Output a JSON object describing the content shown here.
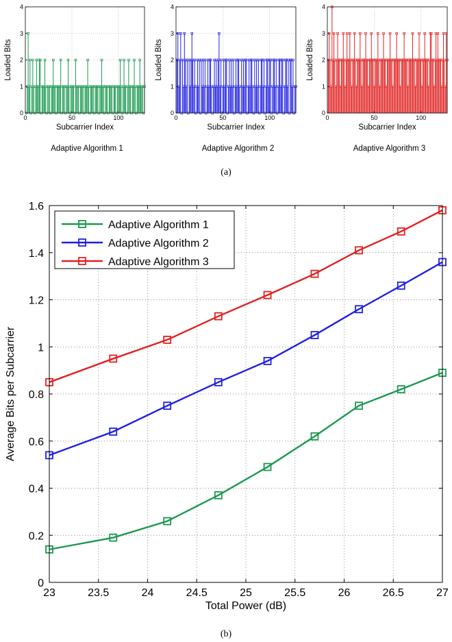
{
  "chart_data": [
    {
      "type": "stem",
      "title": "",
      "xlabel": "Subcarrier Index",
      "ylabel": "Loaded Bits",
      "caption": "Adaptive Algorithm 1",
      "color": "#1a9850",
      "xlim": [
        0,
        128
      ],
      "ylim": [
        0,
        4
      ],
      "xticks": [
        0,
        50,
        100
      ],
      "yticks": [
        0,
        1,
        2,
        3,
        4
      ],
      "grid": true,
      "x_start": 1,
      "values": [
        0,
        1,
        3,
        1,
        2,
        0,
        1,
        2,
        1,
        0,
        1,
        2,
        1,
        1,
        2,
        2,
        0,
        1,
        1,
        1,
        2,
        1,
        0,
        1,
        1,
        1,
        0,
        1,
        1,
        2,
        1,
        1,
        0,
        1,
        1,
        1,
        1,
        2,
        0,
        1,
        1,
        1,
        0,
        1,
        1,
        2,
        1,
        0,
        1,
        1,
        1,
        1,
        0,
        2,
        1,
        1,
        1,
        0,
        1,
        1,
        1,
        1,
        0,
        1,
        1,
        1,
        2,
        1,
        0,
        1,
        1,
        1,
        1,
        0,
        1,
        1,
        1,
        1,
        0,
        1,
        1,
        2,
        1,
        1,
        0,
        1,
        1,
        1,
        0,
        1,
        1,
        1,
        1,
        0,
        1,
        1,
        1,
        0,
        1,
        1,
        1,
        2,
        1,
        0,
        1,
        2,
        1,
        1,
        0,
        1,
        2,
        1,
        1,
        0,
        1,
        1,
        2,
        1,
        0,
        1,
        1,
        1,
        2,
        1,
        1,
        1,
        0,
        1
      ]
    },
    {
      "type": "stem",
      "title": "",
      "xlabel": "Subcarrier Index",
      "ylabel": "Loaded Bits",
      "caption": "Adaptive Algorithm 2",
      "color": "#1f1fe0",
      "xlim": [
        0,
        128
      ],
      "ylim": [
        0,
        4
      ],
      "xticks": [
        0,
        50,
        100
      ],
      "yticks": [
        0,
        1,
        2,
        3,
        4
      ],
      "grid": true,
      "x_start": 1,
      "values": [
        2,
        3,
        1,
        2,
        3,
        0,
        2,
        1,
        3,
        2,
        1,
        2,
        0,
        2,
        1,
        2,
        3,
        2,
        1,
        2,
        0,
        1,
        2,
        1,
        2,
        0,
        2,
        1,
        2,
        1,
        2,
        0,
        1,
        2,
        1,
        2,
        2,
        1,
        0,
        1,
        2,
        1,
        2,
        1,
        2,
        3,
        1,
        2,
        0,
        1,
        2,
        1,
        2,
        2,
        0,
        1,
        2,
        1,
        2,
        1,
        2,
        0,
        1,
        2,
        1,
        2,
        2,
        1,
        0,
        2,
        1,
        2,
        1,
        2,
        2,
        0,
        1,
        2,
        1,
        2,
        2,
        1,
        0,
        2,
        1,
        2,
        1,
        2,
        0,
        1,
        2,
        2,
        1,
        2,
        0,
        1,
        2,
        2,
        1,
        2,
        2,
        0,
        1,
        2,
        2,
        1,
        2,
        0,
        1,
        2,
        2,
        1,
        2,
        2,
        0,
        1,
        2,
        2,
        1,
        2,
        0,
        2,
        2,
        1,
        2,
        0,
        1,
        1
      ]
    },
    {
      "type": "stem",
      "title": "",
      "xlabel": "Subcarrier Index",
      "ylabel": "Loaded Bits",
      "caption": "Adaptive Algorithm 3",
      "color": "#e02020",
      "xlim": [
        0,
        128
      ],
      "ylim": [
        0,
        4
      ],
      "xticks": [
        0,
        50,
        100
      ],
      "yticks": [
        0,
        1,
        2,
        3,
        4
      ],
      "grid": true,
      "x_start": 1,
      "values": [
        2,
        3,
        2,
        1,
        4,
        2,
        3,
        2,
        1,
        2,
        3,
        2,
        2,
        1,
        2,
        2,
        3,
        2,
        1,
        2,
        3,
        2,
        2,
        3,
        2,
        1,
        2,
        2,
        3,
        2,
        1,
        2,
        2,
        2,
        3,
        2,
        1,
        2,
        2,
        2,
        3,
        2,
        2,
        1,
        2,
        2,
        3,
        2,
        2,
        1,
        2,
        2,
        2,
        3,
        2,
        1,
        2,
        2,
        2,
        3,
        2,
        2,
        1,
        2,
        2,
        2,
        3,
        2,
        2,
        1,
        2,
        2,
        2,
        3,
        2,
        2,
        2,
        1,
        2,
        2,
        2,
        3,
        2,
        2,
        2,
        1,
        2,
        2,
        2,
        2,
        3,
        2,
        2,
        1,
        2,
        2,
        2,
        3,
        2,
        2,
        1,
        2,
        2,
        3,
        2,
        2,
        2,
        1,
        2,
        3,
        3,
        2,
        2,
        1,
        2,
        3,
        2,
        3,
        2,
        2,
        2,
        1,
        2,
        3,
        2,
        1,
        3,
        2
      ]
    },
    {
      "type": "line",
      "title": "",
      "xlabel": "Total Power (dB)",
      "ylabel": "Average Bits per Subcarrier",
      "xlim": [
        23,
        27
      ],
      "ylim": [
        0,
        1.6
      ],
      "xticks": [
        23,
        23.5,
        24,
        24.5,
        25,
        25.5,
        26,
        26.5,
        27
      ],
      "yticks": [
        0,
        0.2,
        0.4,
        0.6,
        0.8,
        1,
        1.2,
        1.4,
        1.6
      ],
      "grid": true,
      "legend_position": "top-left",
      "x": [
        23.0,
        23.65,
        24.2,
        24.72,
        25.22,
        25.7,
        26.15,
        26.58,
        27.0
      ],
      "series": [
        {
          "name": "Adaptive Algorithm 1",
          "color": "#1a9850",
          "values": [
            0.14,
            0.19,
            0.26,
            0.37,
            0.49,
            0.62,
            0.75,
            0.82,
            0.89
          ]
        },
        {
          "name": "Adaptive Algorithm 2",
          "color": "#1f1fe0",
          "values": [
            0.54,
            0.64,
            0.75,
            0.85,
            0.94,
            1.05,
            1.16,
            1.26,
            1.36
          ]
        },
        {
          "name": "Adaptive Algorithm 3",
          "color": "#e02020",
          "values": [
            0.85,
            0.95,
            1.03,
            1.13,
            1.22,
            1.31,
            1.41,
            1.49,
            1.58
          ]
        }
      ]
    }
  ],
  "captions": {
    "a": "(a)",
    "b": "(b)"
  }
}
